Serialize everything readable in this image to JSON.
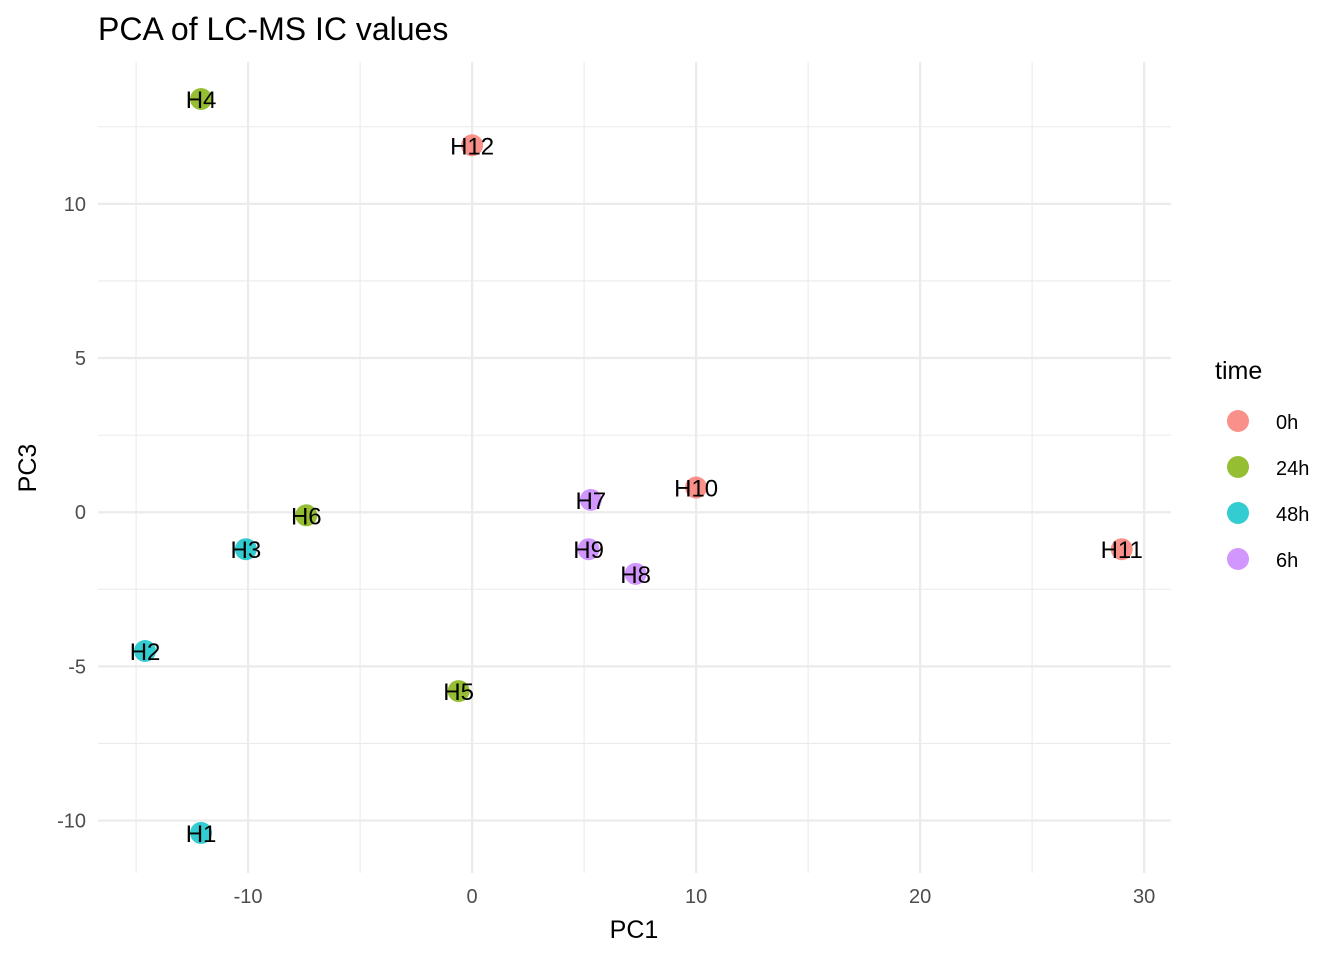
{
  "chart_data": {
    "type": "scatter",
    "title": "PCA of LC-MS IC values",
    "xlabel": "PC1",
    "ylabel": "PC3",
    "xlim": [
      -16.7,
      31.2
    ],
    "ylim": [
      -11.7,
      14.6
    ],
    "xticks": [
      -10,
      0,
      10,
      20,
      30
    ],
    "xtick_labels": [
      "-10",
      "0",
      "10",
      "20",
      "30"
    ],
    "yticks": [
      -10,
      -5,
      0,
      5,
      10
    ],
    "ytick_labels": [
      "-10",
      "-5",
      "0",
      "5",
      "10"
    ],
    "grid": true,
    "legend": {
      "title": "time",
      "position": "right",
      "entries": [
        {
          "label": "0h",
          "color": "#F8766D"
        },
        {
          "label": "24h",
          "color": "#7CAE00"
        },
        {
          "label": "48h",
          "color": "#00BFC4"
        },
        {
          "label": "6h",
          "color": "#C77CFF"
        }
      ]
    },
    "points": [
      {
        "label": "H4",
        "x": -12.1,
        "y": 13.4,
        "group": "24h"
      },
      {
        "label": "H12",
        "x": 0.0,
        "y": 11.9,
        "group": "0h"
      },
      {
        "label": "H10",
        "x": 10.0,
        "y": 0.8,
        "group": "0h"
      },
      {
        "label": "H7",
        "x": 5.3,
        "y": 0.4,
        "group": "6h"
      },
      {
        "label": "H6",
        "x": -7.4,
        "y": -0.1,
        "group": "24h"
      },
      {
        "label": "H3",
        "x": -10.1,
        "y": -1.2,
        "group": "48h"
      },
      {
        "label": "H9",
        "x": 5.2,
        "y": -1.2,
        "group": "6h"
      },
      {
        "label": "H11",
        "x": 29.0,
        "y": -1.2,
        "group": "0h"
      },
      {
        "label": "H8",
        "x": 7.3,
        "y": -2.0,
        "group": "6h"
      },
      {
        "label": "H2",
        "x": -14.6,
        "y": -4.5,
        "group": "48h"
      },
      {
        "label": "H5",
        "x": -0.6,
        "y": -5.8,
        "group": "24h"
      },
      {
        "label": "H1",
        "x": -12.1,
        "y": -10.4,
        "group": "48h"
      }
    ]
  }
}
